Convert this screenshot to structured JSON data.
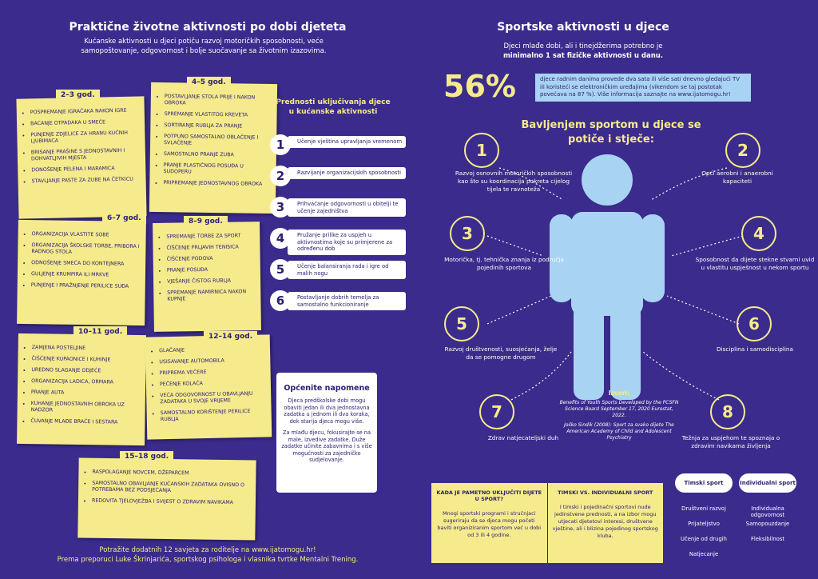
{
  "left": {
    "title": "Praktične životne aktivnosti po dobi djeteta",
    "subtitle": "Kućanske aktivnosti u djeci potiču razvoj motoričkih sposobnosti, veće samopoštovanje, odgovornost i bolje suočavanje sa životnim izazovima.",
    "age_groups": [
      {
        "label": "2–3 god.",
        "items": [
          "POSPREMANJE IGRAČAKA NAKON IGRE",
          "BACANJE OTPADAKA U SMEĆE",
          "PUNJENJE ZDJELICE ZA HRANU KUĆNIH LJUBIMACA",
          "BRISANJE PRAŠINE S JEDNOSTAVNIH I DOHVATLJIVIH MJESTA",
          "DONOŠENJE PELENA I MARAMICA",
          "STAVLJANJE PASTE ZA ZUBE NA ČETKICU"
        ]
      },
      {
        "label": "4–5 god.",
        "items": [
          "POSTAVLJANJE STOLA PRIJE I NAKON OBROKA",
          "SPREMANJE VLASTITOG KREVETA",
          "SORTIRANJE RUBLJA ZA PRANJE",
          "POTPUNO SAMOSTALNO OBLAČENJE I SVLAČENJE",
          "SAMOSTALNO PRANJE ZUBA",
          "PRANJE PLASTIČNOG POSUĐA U SUDOPERU",
          "PRIPREMANJE JEDNOSTAVNOG OBROKA"
        ]
      },
      {
        "label": "6–7 god.",
        "items": [
          "ORGANIZACIJA VLASTITE SOBE",
          "ORGANIZACIJA ŠKOLSKE TORBE, PRIBORA I RADNOG STOLA",
          "ODNOŠENJE SMEĆA DO KONTEJNERA",
          "GULJENJE KRUMPIRA ILI MRKVE",
          "PUNJENJE I PRAŽNJENJE PERILICE SUĐA"
        ]
      },
      {
        "label": "8–9 god.",
        "items": [
          "SPREMANJE TORBE ZA SPORT",
          "ČIŠĆENJE PRLJAVIH TENISICA",
          "ČIŠĆENJE PODOVA",
          "PRANJE POSUĐA",
          "VJEŠANJE ČISTOG RUBLJA",
          "SPREMANJE NAMIRNICA NAKON KUPNJE"
        ]
      },
      {
        "label": "10–11 god.",
        "items": [
          "ZAMJENA POSTELJINE",
          "ČIŠĆENJE KUPAONICE I KUHINJE",
          "UREDNO SLAGANJE ODJEĆE",
          "ORGANIZACIJA LADICA, ORMARA",
          "PRANJE AUTA",
          "KUHANJE JEDNOSTAVNIH OBROKA UZ NADZOR",
          "ČUVANJE MLAĐE BRAĆE I SESTARA"
        ]
      },
      {
        "label": "12–14 god.",
        "items": [
          "GLAČANJE",
          "USISAVANJE AUTOMOBILA",
          "PRIPREMA VEČERE",
          "PEČENJE KOLAČA",
          "VEĆA ODGOVORNOST U OBAVLJANJU ZADATAKA U SVOJE VRIJEME",
          "SAMOSTALNO KORIŠTENJE PERILICE RUBLJA"
        ]
      },
      {
        "label": "15–18 god.",
        "items": [
          "RASPOLAGANJE NOVCEM, DŽEPARCEM",
          "SAMOSTALNO OBAVLJANJE KUĆANSKIH ZADATAKA OVISNO O POTREBAMA BEZ PODSJEĆANJA",
          "REDOVITA TJELOVJEŽBA I SVIJEST O ZDRAVIM NAVIKAMA"
        ]
      }
    ],
    "benefits_title": "Prednosti uključivanja djece u kućanske aktivnosti",
    "benefits": [
      {
        "number": "1",
        "text": "Učenje vještina upravljanja vremenom"
      },
      {
        "number": "2",
        "text": "Razvijanje organizacijskih sposobnosti"
      },
      {
        "number": "3",
        "text": "Prihvaćanje odgovornosti u obitelji te učenje zajedništva"
      },
      {
        "number": "4",
        "text": "Pružanje prilike za uspjeh u aktivnostima koje su primjerene za određenu dob"
      },
      {
        "number": "5",
        "text": "Učenje balansiranja rada i igre od malih nogu"
      },
      {
        "number": "6",
        "text": "Postavljanje dobrih temelja za samostalno funkcioniranje"
      }
    ],
    "notes": {
      "title": "Općenite napomene",
      "paragraphs": [
        "Djeca predškolske dobi mogu obaviti jedan ili dva jednostavna zadatka u jednom ili dva koraka, dok starija djeca mogu više.",
        "Za mlađu djecu, fokusirajte se na male, izvedive zadatke. Duže zadatke učinite zabavnima i s više mogućnosti za zajedničko sudjelovanje."
      ]
    },
    "footer": [
      "Potražite dodatnih 12 savjeta za roditelje na www.ijatomogu.hr!",
      "Prema preporuci Luke Škrinjarića, sportskog psihologa i vlasnika tvrtke Mentalni Trening."
    ]
  },
  "right": {
    "title": "Sportske aktivnosti u djece",
    "subtitle": [
      "Djeci mlađe dobi, ali i tinejdžerima potrebno je",
      "minimalno 1 sat fizičke aktivnosti u danu."
    ],
    "stat": "56%",
    "stat_text": "djece radnim danima provede dva sata ili više sati dnevno gledajući TV ili koristeći se elektroničkim uređajima (vikendom se taj postotak povećava na 87 %). Više informacija saznajte na www.ijatomogu.hr!",
    "heading": "Bavljenjem sportom u djece se potiče i stječe:",
    "benefits": [
      {
        "number": "1",
        "text": "Razvoj osnovnih motoričkih sposobnosti kao što su koordinacija pokreta cijelog tijela te ravnoteža"
      },
      {
        "number": "2",
        "text": "Opći aerobni i anaerobni kapaciteti"
      },
      {
        "number": "3",
        "text": "Motorička, tj. tehnička znanja iz područja pojedinih sportova"
      },
      {
        "number": "4",
        "text": "Sposobnost da dijete stekne stvarni uvid u vlastitu uspješnost u nekom sportu"
      },
      {
        "number": "5",
        "text": "Razvoj društvenosti, suosjećanja, želje da se pomogne drugom"
      },
      {
        "number": "6",
        "text": "Disciplina i samodisciplina"
      },
      {
        "number": "7",
        "text": "Zdrav natjecateljski duh"
      },
      {
        "number": "8",
        "text": "Težnja za uspjehom te spoznaja o zdravim navikama življenja"
      }
    ],
    "sources_title": "Izvori:",
    "sources": [
      "Benefits of Youth Sports Developed by the PCSFN Science Board September 17, 2020 Eurostat, 2022.",
      "Joško Sindik (2008): Sport za svako dijete The American Academy of Child and Adolescent Psychiatry"
    ],
    "box": [
      {
        "title": "KADA JE PAMETNO UKLJUČITI DIJETE U SPORT?",
        "text": "Mnogi sportski programi i stručnjaci sugeriraju da se djeca mogu početi baviti organiziranim sportom već u dobi od 3 ili 4 godine."
      },
      {
        "title": "TIMSKI VS. INDIVIDUALNI SPORT",
        "text": "I timski i pojedinačni sportovi nude jedinstvene prednosti, a na izbor mogu utjecati djetetovi interesi, društvene vještine, ali i blizina pojedinog sportskog kluba."
      }
    ],
    "compare": [
      {
        "title": "Timski sport",
        "items": [
          "Društveni razvoj",
          "Prijateljstvo",
          "Učenje od drugih",
          "Natjecanje"
        ]
      },
      {
        "title": "Individualni sport",
        "items": [
          "Individualna odgovornost",
          "Samopouzdanje",
          "Fleksibilnost"
        ]
      }
    ]
  }
}
